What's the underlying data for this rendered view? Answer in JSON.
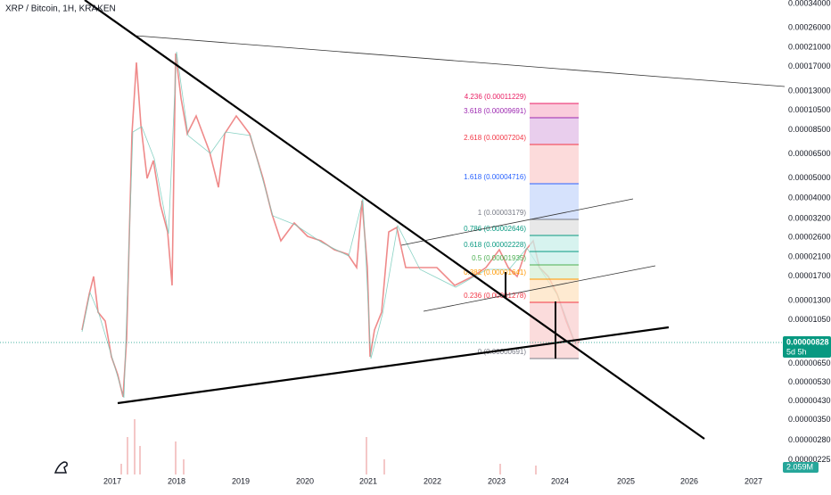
{
  "header": {
    "title": "XRP / Bitcoin, 1H, KRAKEN"
  },
  "price_axis": {
    "labels": [
      "0.00034000",
      "0.00026000",
      "0.00021000",
      "0.00017000",
      "0.00013000",
      "0.00010500",
      "0.00008500",
      "0.00006500",
      "0.00005000",
      "0.00004000",
      "0.00003200",
      "0.00002600",
      "0.00002100",
      "0.00001700",
      "0.00001300",
      "0.00001050",
      "0.00000650",
      "0.00000530",
      "0.00000430",
      "0.00000350",
      "0.00000280",
      "0.00000225"
    ]
  },
  "time_axis": {
    "labels": [
      "2017",
      "2018",
      "2019",
      "2020",
      "2021",
      "2022",
      "2023",
      "2024",
      "2025",
      "2026",
      "2027"
    ]
  },
  "fib_levels": [
    {
      "label": "4.236 (0.00011229)",
      "color": "#e91e63"
    },
    {
      "label": "3.618 (0.00009691)",
      "color": "#9c27b0"
    },
    {
      "label": "2.618 (0.00007204)",
      "color": "#f23645"
    },
    {
      "label": "1.618 (0.00004716)",
      "color": "#2962ff"
    },
    {
      "label": "1 (0.00003179)",
      "color": "#787b86"
    },
    {
      "label": "0.786 (0.00002646)",
      "color": "#089981"
    },
    {
      "label": "0.618 (0.00002228)",
      "color": "#089981"
    },
    {
      "label": "0.5 (0.00001935)",
      "color": "#4caf50"
    },
    {
      "label": "0.382 (0.00001641)",
      "color": "#ff9800"
    },
    {
      "label": "0.236 (0.00001278)",
      "color": "#f23645"
    },
    {
      "label": "0 (0.00000691)",
      "color": "#787b86"
    }
  ],
  "last_price": {
    "price": "0.00000828",
    "countdown": "5d 5h"
  },
  "volume_tag": "2.059M"
}
